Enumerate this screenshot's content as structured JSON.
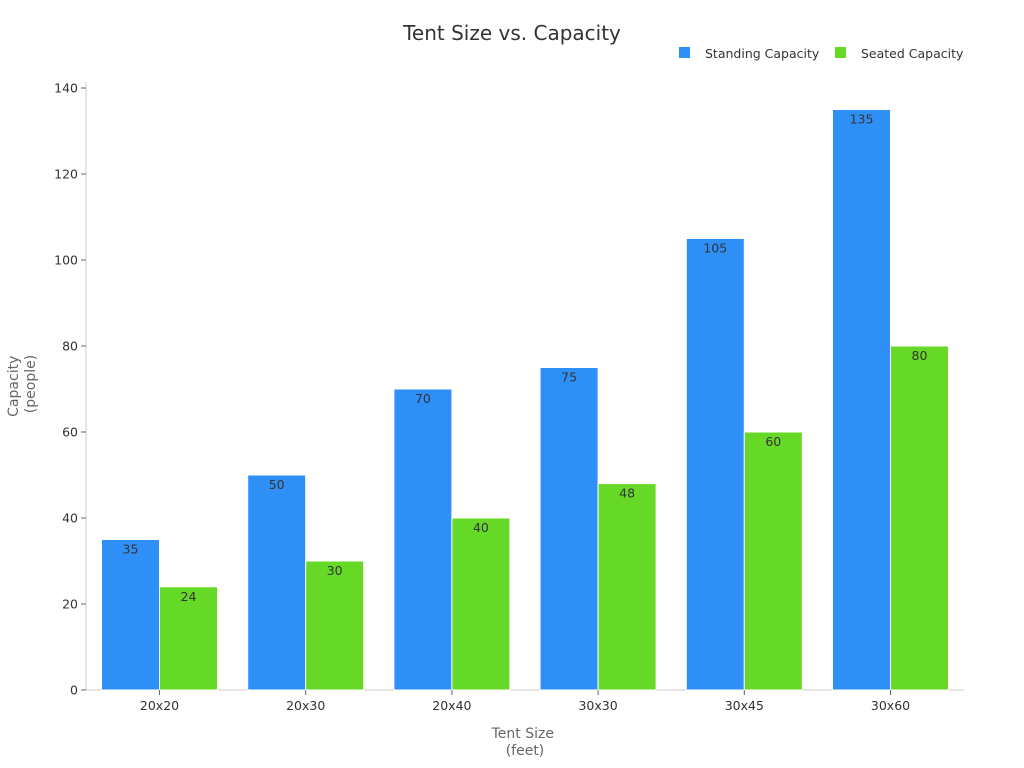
{
  "chart_data": {
    "type": "bar",
    "title": "Tent Size vs. Capacity",
    "xlabel": [
      "Tent Size",
      "(feet)"
    ],
    "ylabel": [
      "Capacity",
      "(people)"
    ],
    "categories": [
      "20x20",
      "20x30",
      "20x40",
      "30x30",
      "30x45",
      "30x60"
    ],
    "series": [
      {
        "name": "Standing Capacity",
        "color": "#2e90f7",
        "values": [
          35,
          50,
          70,
          75,
          105,
          135
        ]
      },
      {
        "name": "Seated Capacity",
        "color": "#66d927",
        "values": [
          24,
          30,
          40,
          48,
          60,
          80
        ]
      }
    ],
    "ylim": [
      0,
      140
    ],
    "yticks": [
      0,
      20,
      40,
      60,
      80,
      100,
      120,
      140
    ],
    "grid": false,
    "legend": "top-right"
  }
}
